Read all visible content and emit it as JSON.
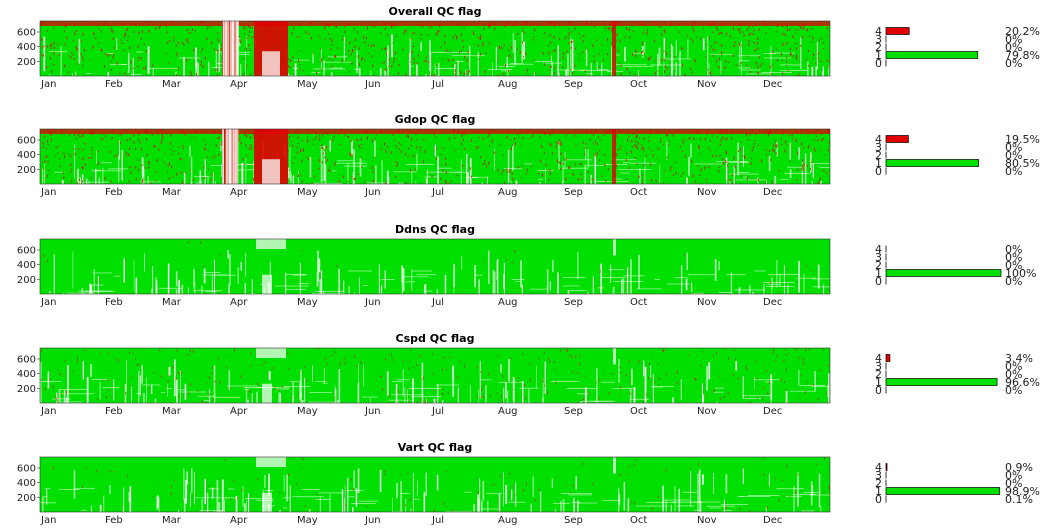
{
  "chart_data": [
    {
      "type": "heatmap",
      "title": "Overall QC flag",
      "x_tick_labels": [
        "Jan",
        "Feb",
        "Mar",
        "Apr",
        "May",
        "Jun",
        "Jul",
        "Aug",
        "Sep",
        "Oct",
        "Nov",
        "Dec"
      ],
      "y_tick_labels": [
        "200",
        "400",
        "600"
      ],
      "ylim": [
        0,
        750
      ],
      "flag_colors": {
        "good": "#00e000",
        "bad": "#e00000"
      },
      "bad_fraction": 0.202,
      "histogram": {
        "type": "bar",
        "categories": [
          "4",
          "3",
          "2",
          "1",
          "0"
        ],
        "values": [
          20.2,
          0,
          0,
          79.8,
          0
        ],
        "labels": [
          "20.2%",
          "0%",
          "0%",
          "79.8%",
          "0%"
        ],
        "colors": [
          "#e00000",
          "#e00000",
          "#e00000",
          "#00e000",
          "#00e000"
        ]
      }
    },
    {
      "type": "heatmap",
      "title": "Gdop QC flag",
      "x_tick_labels": [
        "Jan",
        "Feb",
        "Mar",
        "Apr",
        "May",
        "Jun",
        "Jul",
        "Aug",
        "Sep",
        "Oct",
        "Nov",
        "Dec"
      ],
      "y_tick_labels": [
        "200",
        "400",
        "600"
      ],
      "ylim": [
        0,
        750
      ],
      "flag_colors": {
        "good": "#00e000",
        "bad": "#e00000"
      },
      "bad_fraction": 0.195,
      "histogram": {
        "type": "bar",
        "categories": [
          "4",
          "3",
          "2",
          "1",
          "0"
        ],
        "values": [
          19.5,
          0,
          0,
          80.5,
          0
        ],
        "labels": [
          "19.5%",
          "0%",
          "0%",
          "80.5%",
          "0%"
        ],
        "colors": [
          "#e00000",
          "#e00000",
          "#e00000",
          "#00e000",
          "#00e000"
        ]
      }
    },
    {
      "type": "heatmap",
      "title": "Ddns QC flag",
      "x_tick_labels": [
        "Jan",
        "Feb",
        "Mar",
        "Apr",
        "May",
        "Jun",
        "Jul",
        "Aug",
        "Sep",
        "Oct",
        "Nov",
        "Dec"
      ],
      "y_tick_labels": [
        "200",
        "400",
        "600"
      ],
      "ylim": [
        0,
        750
      ],
      "flag_colors": {
        "good": "#00e000",
        "bad": "#e00000"
      },
      "bad_fraction": 0.0,
      "histogram": {
        "type": "bar",
        "categories": [
          "4",
          "3",
          "2",
          "1",
          "0"
        ],
        "values": [
          0,
          0,
          0,
          100,
          0
        ],
        "labels": [
          "0%",
          "0%",
          "0%",
          "100%",
          "0%"
        ],
        "colors": [
          "#e00000",
          "#e00000",
          "#e00000",
          "#00e000",
          "#00e000"
        ]
      }
    },
    {
      "type": "heatmap",
      "title": "Cspd QC flag",
      "x_tick_labels": [
        "Jan",
        "Feb",
        "Mar",
        "Apr",
        "May",
        "Jun",
        "Jul",
        "Aug",
        "Sep",
        "Oct",
        "Nov",
        "Dec"
      ],
      "y_tick_labels": [
        "200",
        "400",
        "600"
      ],
      "ylim": [
        0,
        750
      ],
      "flag_colors": {
        "good": "#00e000",
        "bad": "#e00000"
      },
      "bad_fraction": 0.034,
      "histogram": {
        "type": "bar",
        "categories": [
          "4",
          "3",
          "2",
          "1",
          "0"
        ],
        "values": [
          3.4,
          0,
          0,
          96.6,
          0
        ],
        "labels": [
          "3.4%",
          "0%",
          "0%",
          "96.6%",
          "0%"
        ],
        "colors": [
          "#e00000",
          "#e00000",
          "#e00000",
          "#00e000",
          "#00e000"
        ]
      }
    },
    {
      "type": "heatmap",
      "title": "Vart QC flag",
      "x_tick_labels": [
        "Jan",
        "Feb",
        "Mar",
        "Apr",
        "May",
        "Jun",
        "Jul",
        "Aug",
        "Sep",
        "Oct",
        "Nov",
        "Dec"
      ],
      "y_tick_labels": [
        "200",
        "400",
        "600"
      ],
      "ylim": [
        0,
        750
      ],
      "flag_colors": {
        "good": "#00e000",
        "bad": "#e00000"
      },
      "bad_fraction": 0.009,
      "histogram": {
        "type": "bar",
        "categories": [
          "4",
          "3",
          "2",
          "1",
          "0"
        ],
        "values": [
          0.9,
          0,
          0,
          98.9,
          0.1
        ],
        "labels": [
          "0.9%",
          "0%",
          "0%",
          "98.9%",
          "0.1%"
        ],
        "colors": [
          "#e00000",
          "#e00000",
          "#e00000",
          "#00e000",
          "#00e000"
        ]
      }
    }
  ]
}
